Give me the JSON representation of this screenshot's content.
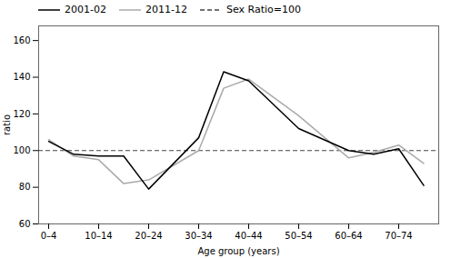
{
  "chart_data": {
    "type": "line",
    "xlabel": "Age group (years)",
    "ylabel": "ratio",
    "x": [
      0,
      0.5,
      1,
      1.5,
      2,
      3,
      3.5,
      4,
      5,
      6,
      6.5,
      7,
      7.5
    ],
    "series": [
      {
        "name": "2001-02",
        "color": "#000000",
        "values": [
          105,
          98,
          97,
          97,
          79,
          107,
          143,
          138,
          112,
          100,
          98,
          101,
          81
        ]
      },
      {
        "name": "2011-12",
        "color": "#aaaaaa",
        "values": [
          106,
          97,
          95,
          82,
          84,
          100,
          134,
          139,
          119,
          96,
          99,
          103,
          93
        ]
      }
    ],
    "reference_line": {
      "name": "Sex Ratio=100",
      "value": 100,
      "color": "#444444",
      "line_style": "dashed"
    },
    "xlim": [
      -0.2,
      7.8
    ],
    "xticks": [
      {
        "value": 0,
        "label": "0–4"
      },
      {
        "value": 1,
        "label": "10–14"
      },
      {
        "value": 2,
        "label": "20–24"
      },
      {
        "value": 3,
        "label": "30–34"
      },
      {
        "value": 4,
        "label": "40–44"
      },
      {
        "value": 5,
        "label": "50–54"
      },
      {
        "value": 6,
        "label": "60–64"
      },
      {
        "value": 7,
        "label": "70–74"
      }
    ],
    "ylim": [
      60,
      168
    ],
    "yticks": [
      60,
      80,
      100,
      120,
      140,
      160
    ],
    "grid": false,
    "legend": "upper left"
  }
}
